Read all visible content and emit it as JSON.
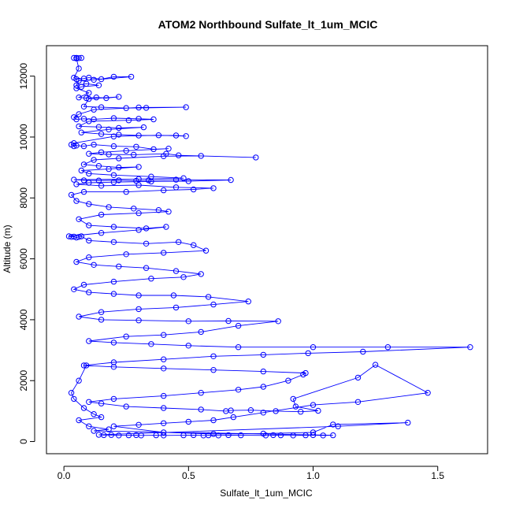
{
  "chart_data": {
    "type": "scatter",
    "title": "ATOM2 Northbound Sulfate_lt_1um_MCIC",
    "xlabel": "Sulfate_lt_1um_MCIC",
    "ylabel": "Altitude (m)",
    "xlim": [
      -0.07,
      1.7
    ],
    "ylim": [
      -400,
      13000
    ],
    "xticks": [
      0.0,
      0.5,
      1.0,
      1.5
    ],
    "xtick_labels": [
      "0.0",
      "0.5",
      "1.0",
      "1.5"
    ],
    "yticks": [
      0,
      2000,
      4000,
      6000,
      8000,
      10000,
      12000
    ],
    "ytick_labels": [
      "0",
      "2000",
      "4000",
      "6000",
      "8000",
      "10000",
      "12000"
    ],
    "grid": false,
    "legend": "none",
    "connected": true,
    "colors": {
      "series": "#0000ff",
      "axes": "#000000"
    },
    "series": [
      {
        "points": [
          [
            0.04,
            12600
          ],
          [
            0.05,
            12600
          ],
          [
            0.06,
            12590
          ],
          [
            0.07,
            12600
          ],
          [
            0.05,
            12580
          ],
          [
            0.06,
            12250
          ],
          [
            0.04,
            11950
          ],
          [
            0.05,
            11900
          ],
          [
            0.08,
            11920
          ],
          [
            0.1,
            11950
          ],
          [
            0.15,
            11900
          ],
          [
            0.2,
            11980
          ],
          [
            0.27,
            11980
          ],
          [
            0.12,
            11880
          ],
          [
            0.06,
            11850
          ],
          [
            0.05,
            11700
          ],
          [
            0.09,
            11750
          ],
          [
            0.14,
            11700
          ],
          [
            0.07,
            11650
          ],
          [
            0.05,
            11600
          ],
          [
            0.1,
            11450
          ],
          [
            0.06,
            11300
          ],
          [
            0.09,
            11280
          ],
          [
            0.13,
            11300
          ],
          [
            0.17,
            11280
          ],
          [
            0.22,
            11320
          ],
          [
            0.1,
            11250
          ],
          [
            0.08,
            11000
          ],
          [
            0.15,
            10980
          ],
          [
            0.25,
            10950
          ],
          [
            0.33,
            10960
          ],
          [
            0.49,
            10980
          ],
          [
            0.3,
            10970
          ],
          [
            0.12,
            10900
          ],
          [
            0.06,
            10750
          ],
          [
            0.04,
            10650
          ],
          [
            0.05,
            10580
          ],
          [
            0.08,
            10600
          ],
          [
            0.12,
            10580
          ],
          [
            0.2,
            10620
          ],
          [
            0.3,
            10600
          ],
          [
            0.36,
            10580
          ],
          [
            0.26,
            10550
          ],
          [
            0.1,
            10520
          ],
          [
            0.06,
            10350
          ],
          [
            0.14,
            10330
          ],
          [
            0.22,
            10300
          ],
          [
            0.32,
            10320
          ],
          [
            0.18,
            10250
          ],
          [
            0.07,
            10150
          ],
          [
            0.15,
            10100
          ],
          [
            0.22,
            10080
          ],
          [
            0.3,
            10050
          ],
          [
            0.45,
            10050
          ],
          [
            0.49,
            10030
          ],
          [
            0.38,
            10060
          ],
          [
            0.2,
            10020
          ],
          [
            0.04,
            9800
          ],
          [
            0.03,
            9750
          ],
          [
            0.04,
            9700
          ],
          [
            0.05,
            9720
          ],
          [
            0.08,
            9700
          ],
          [
            0.12,
            9750
          ],
          [
            0.2,
            9700
          ],
          [
            0.29,
            9680
          ],
          [
            0.36,
            9600
          ],
          [
            0.42,
            9620
          ],
          [
            0.25,
            9550
          ],
          [
            0.15,
            9500
          ],
          [
            0.1,
            9450
          ],
          [
            0.18,
            9430
          ],
          [
            0.28,
            9420
          ],
          [
            0.41,
            9450
          ],
          [
            0.46,
            9400
          ],
          [
            0.77,
            9330
          ],
          [
            0.55,
            9380
          ],
          [
            0.4,
            9370
          ],
          [
            0.22,
            9300
          ],
          [
            0.12,
            9250
          ],
          [
            0.08,
            9100
          ],
          [
            0.14,
            9050
          ],
          [
            0.22,
            9000
          ],
          [
            0.3,
            9020
          ],
          [
            0.18,
            8950
          ],
          [
            0.07,
            8900
          ],
          [
            0.1,
            8800
          ],
          [
            0.2,
            8750
          ],
          [
            0.35,
            8700
          ],
          [
            0.48,
            8650
          ],
          [
            0.3,
            8620
          ],
          [
            0.04,
            8600
          ],
          [
            0.08,
            8580
          ],
          [
            0.14,
            8570
          ],
          [
            0.22,
            8580
          ],
          [
            0.29,
            8560
          ],
          [
            0.34,
            8580
          ],
          [
            0.45,
            8600
          ],
          [
            0.67,
            8590
          ],
          [
            0.5,
            8550
          ],
          [
            0.35,
            8540
          ],
          [
            0.2,
            8520
          ],
          [
            0.1,
            8500
          ],
          [
            0.05,
            8450
          ],
          [
            0.15,
            8400
          ],
          [
            0.3,
            8420
          ],
          [
            0.45,
            8350
          ],
          [
            0.6,
            8320
          ],
          [
            0.52,
            8280
          ],
          [
            0.4,
            8250
          ],
          [
            0.25,
            8200
          ],
          [
            0.08,
            8200
          ],
          [
            0.03,
            8100
          ],
          [
            0.05,
            7900
          ],
          [
            0.1,
            7800
          ],
          [
            0.18,
            7700
          ],
          [
            0.28,
            7650
          ],
          [
            0.38,
            7600
          ],
          [
            0.42,
            7550
          ],
          [
            0.3,
            7500
          ],
          [
            0.15,
            7450
          ],
          [
            0.06,
            7300
          ],
          [
            0.1,
            7100
          ],
          [
            0.2,
            7050
          ],
          [
            0.33,
            7000
          ],
          [
            0.41,
            7050
          ],
          [
            0.3,
            6950
          ],
          [
            0.15,
            6850
          ],
          [
            0.02,
            6740
          ],
          [
            0.03,
            6720
          ],
          [
            0.04,
            6730
          ],
          [
            0.05,
            6700
          ],
          [
            0.06,
            6720
          ],
          [
            0.07,
            6740
          ],
          [
            0.1,
            6600
          ],
          [
            0.2,
            6550
          ],
          [
            0.33,
            6500
          ],
          [
            0.46,
            6550
          ],
          [
            0.52,
            6450
          ],
          [
            0.57,
            6270
          ],
          [
            0.4,
            6200
          ],
          [
            0.25,
            6150
          ],
          [
            0.1,
            6050
          ],
          [
            0.05,
            5900
          ],
          [
            0.12,
            5800
          ],
          [
            0.22,
            5750
          ],
          [
            0.33,
            5700
          ],
          [
            0.45,
            5600
          ],
          [
            0.55,
            5500
          ],
          [
            0.48,
            5400
          ],
          [
            0.35,
            5350
          ],
          [
            0.2,
            5250
          ],
          [
            0.08,
            5150
          ],
          [
            0.04,
            5000
          ],
          [
            0.1,
            4900
          ],
          [
            0.2,
            4850
          ],
          [
            0.3,
            4800
          ],
          [
            0.44,
            4800
          ],
          [
            0.58,
            4750
          ],
          [
            0.74,
            4600
          ],
          [
            0.6,
            4500
          ],
          [
            0.45,
            4400
          ],
          [
            0.3,
            4350
          ],
          [
            0.15,
            4250
          ],
          [
            0.06,
            4100
          ],
          [
            0.15,
            4000
          ],
          [
            0.3,
            3980
          ],
          [
            0.5,
            3950
          ],
          [
            0.66,
            3960
          ],
          [
            0.86,
            3950
          ],
          [
            0.7,
            3800
          ],
          [
            0.55,
            3600
          ],
          [
            0.4,
            3500
          ],
          [
            0.25,
            3450
          ],
          [
            0.1,
            3300
          ],
          [
            0.2,
            3250
          ],
          [
            0.35,
            3200
          ],
          [
            0.5,
            3150
          ],
          [
            0.7,
            3100
          ],
          [
            1.0,
            3100
          ],
          [
            1.3,
            3100
          ],
          [
            1.63,
            3100
          ],
          [
            1.2,
            2950
          ],
          [
            0.98,
            2900
          ],
          [
            0.8,
            2850
          ],
          [
            0.6,
            2800
          ],
          [
            0.4,
            2700
          ],
          [
            0.2,
            2600
          ],
          [
            0.08,
            2500
          ],
          [
            0.2,
            2450
          ],
          [
            0.4,
            2400
          ],
          [
            0.6,
            2350
          ],
          [
            0.8,
            2300
          ],
          [
            0.97,
            2250
          ],
          [
            0.96,
            2200
          ],
          [
            0.9,
            2000
          ],
          [
            0.8,
            1800
          ],
          [
            0.7,
            1700
          ],
          [
            0.55,
            1600
          ],
          [
            0.4,
            1500
          ],
          [
            0.2,
            1400
          ],
          [
            0.1,
            1300
          ],
          [
            0.15,
            1250
          ],
          [
            0.25,
            1150
          ],
          [
            0.4,
            1100
          ],
          [
            0.55,
            1050
          ],
          [
            0.65,
            1000
          ],
          [
            0.67,
            1020
          ],
          [
            0.75,
            1030
          ],
          [
            0.85,
            1000
          ],
          [
            0.95,
            980
          ],
          [
            1.02,
            1010
          ],
          [
            0.93,
            1150
          ],
          [
            0.92,
            1400
          ],
          [
            1.18,
            2100
          ],
          [
            1.25,
            2520
          ],
          [
            1.46,
            1600
          ],
          [
            1.18,
            1300
          ],
          [
            1.0,
            1200
          ],
          [
            0.8,
            950
          ],
          [
            0.68,
            800
          ],
          [
            0.6,
            700
          ],
          [
            0.5,
            650
          ],
          [
            0.4,
            600
          ],
          [
            0.3,
            550
          ],
          [
            0.2,
            500
          ],
          [
            0.4,
            300
          ],
          [
            0.6,
            250
          ],
          [
            0.8,
            260
          ],
          [
            1.0,
            300
          ],
          [
            1.08,
            560
          ],
          [
            1.38,
            620
          ],
          [
            1.1,
            500
          ],
          [
            0.14,
            220
          ],
          [
            0.16,
            210
          ],
          [
            0.19,
            215
          ],
          [
            0.22,
            200
          ],
          [
            0.26,
            205
          ],
          [
            0.29,
            210
          ],
          [
            0.31,
            200
          ],
          [
            0.37,
            205
          ],
          [
            0.4,
            200
          ],
          [
            0.48,
            205
          ],
          [
            0.52,
            210
          ],
          [
            0.56,
            200
          ],
          [
            0.58,
            205
          ],
          [
            0.62,
            200
          ],
          [
            0.66,
            210
          ],
          [
            0.71,
            205
          ],
          [
            0.81,
            200
          ],
          [
            0.84,
            210
          ],
          [
            0.87,
            205
          ],
          [
            0.92,
            200
          ],
          [
            0.97,
            205
          ],
          [
            1.0,
            210
          ],
          [
            1.04,
            200
          ],
          [
            1.08,
            205
          ],
          [
            0.12,
            350
          ],
          [
            0.18,
            400
          ],
          [
            0.1,
            500
          ],
          [
            0.06,
            700
          ],
          [
            0.15,
            800
          ],
          [
            0.12,
            900
          ],
          [
            0.08,
            1100
          ],
          [
            0.04,
            1400
          ],
          [
            0.03,
            1600
          ],
          [
            0.06,
            2000
          ],
          [
            0.09,
            2500
          ]
        ]
      }
    ]
  }
}
